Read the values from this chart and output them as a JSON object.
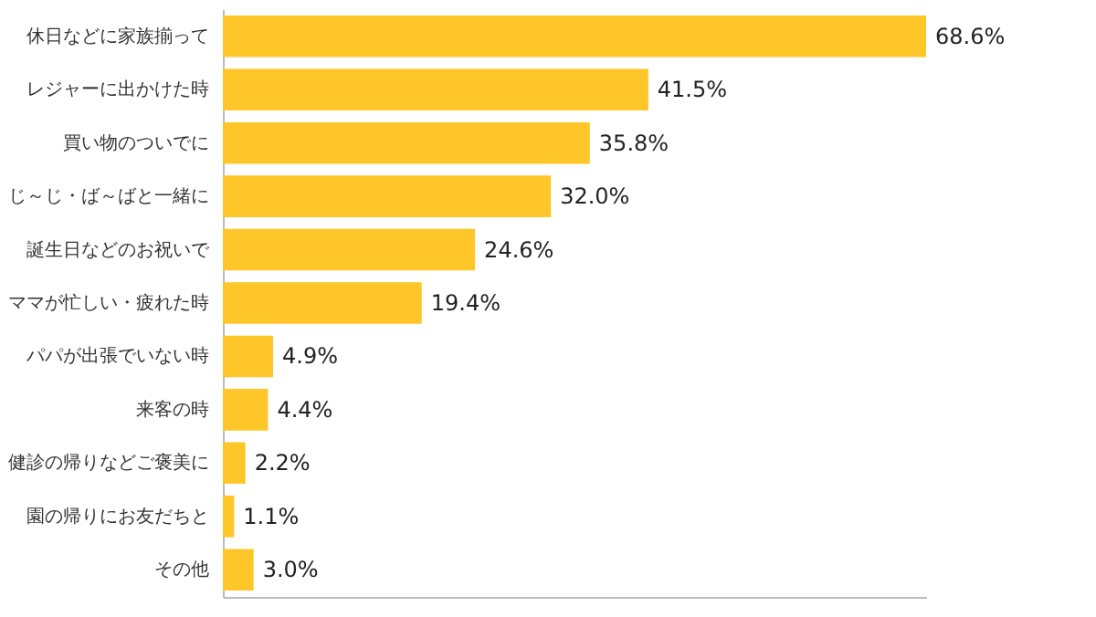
{
  "chart_data": {
    "type": "bar",
    "orientation": "horizontal",
    "categories": [
      "休日などに家族揃って",
      "レジャーに出かけた時",
      "買い物のついでに",
      "じ～じ・ば～ばと一緒に",
      "誕生日などのお祝いで",
      "ママが忙しい・疲れた時",
      "パパが出張でいない時",
      "来客の時",
      "健診の帰りなどご褒美に",
      "園の帰りにお友だちと",
      "その他"
    ],
    "values": [
      68.6,
      41.5,
      35.8,
      32.0,
      24.6,
      19.4,
      4.9,
      4.4,
      2.2,
      1.1,
      3.0
    ],
    "value_labels": [
      "68.6%",
      "41.5%",
      "35.8%",
      "32.0%",
      "24.6%",
      "19.4%",
      "4.9%",
      "4.4%",
      "2.2%",
      "1.1%",
      "3.0%"
    ],
    "color": "#ffc629",
    "xlim": [
      0,
      68.6
    ],
    "tick_labels": "y"
  }
}
